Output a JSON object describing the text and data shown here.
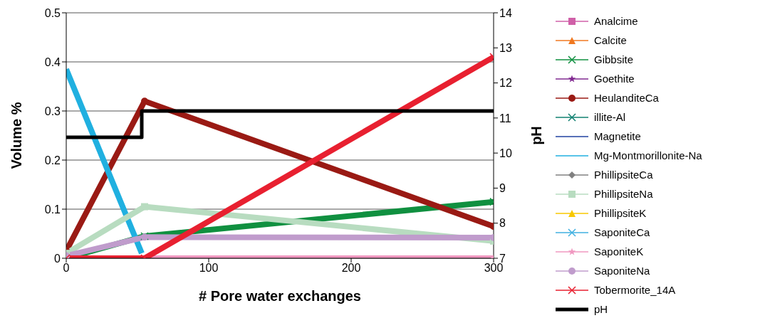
{
  "chart_data": {
    "type": "line",
    "xlabel": "# Pore water exchanges",
    "ylabel": "Volume %",
    "y2label": "pH",
    "xlim": [
      0,
      300
    ],
    "xticks": [
      0,
      100,
      200,
      300
    ],
    "ylim": [
      0,
      0.5
    ],
    "yticks": [
      0,
      0.1,
      0.2,
      0.3,
      0.4,
      0.5
    ],
    "y2lim": [
      7,
      14
    ],
    "y2ticks": [
      7,
      8,
      9,
      10,
      11,
      12,
      13,
      14
    ],
    "grid": "y",
    "legend": "right",
    "line_style": "solid",
    "series": [
      {
        "name": "Analcime",
        "color": "#d060a8",
        "marker": "square"
      },
      {
        "name": "Calcite",
        "color": "#f07820",
        "marker": "triangle"
      },
      {
        "name": "Gibbsite",
        "color": "#109040",
        "marker": "cross",
        "x": [
          0,
          55,
          300
        ],
        "values": [
          0,
          0.045,
          0.115
        ]
      },
      {
        "name": "Goethite",
        "color": "#802890",
        "marker": "star"
      },
      {
        "name": "HeulanditeCa",
        "color": "#9a1a14",
        "marker": "circle",
        "x": [
          0,
          55,
          300
        ],
        "values": [
          0.015,
          0.32,
          0.065
        ]
      },
      {
        "name": "illite-Al",
        "color": "#108070",
        "marker": "cross"
      },
      {
        "name": "Magnetite",
        "color": "#2040a0",
        "marker": "none"
      },
      {
        "name": "Mg-Montmorillonite-Na",
        "color": "#20b0e0",
        "marker": "none",
        "x": [
          0,
          53
        ],
        "values": [
          0.385,
          0.01
        ]
      },
      {
        "name": "PhillipsiteCa",
        "color": "#808080",
        "marker": "diamond"
      },
      {
        "name": "PhillipsiteNa",
        "color": "#b8dcc0",
        "marker": "square",
        "x": [
          0,
          55,
          300
        ],
        "values": [
          0.01,
          0.105,
          0.035
        ]
      },
      {
        "name": "PhillipsiteK",
        "color": "#f8c800",
        "marker": "triangle"
      },
      {
        "name": "SaponiteCa",
        "color": "#40b0e0",
        "marker": "cross"
      },
      {
        "name": "SaponiteK",
        "color": "#f098c0",
        "marker": "star",
        "x": [
          0,
          300
        ],
        "values": [
          0,
          0
        ]
      },
      {
        "name": "SaponiteNa",
        "color": "#c09ccc",
        "marker": "circle",
        "x": [
          0,
          55,
          300
        ],
        "values": [
          0.005,
          0.043,
          0.042
        ]
      },
      {
        "name": "Tobermorite_14A",
        "color": "#e82030",
        "marker": "cross",
        "x": [
          0,
          55,
          300
        ],
        "values": [
          0,
          0,
          0.41
        ]
      },
      {
        "name": "pH",
        "type": "step",
        "axis": "y2",
        "color": "#000000",
        "marker": "none",
        "x": [
          0,
          53,
          300
        ],
        "values": [
          10.45,
          11.2,
          11.2
        ]
      }
    ]
  }
}
